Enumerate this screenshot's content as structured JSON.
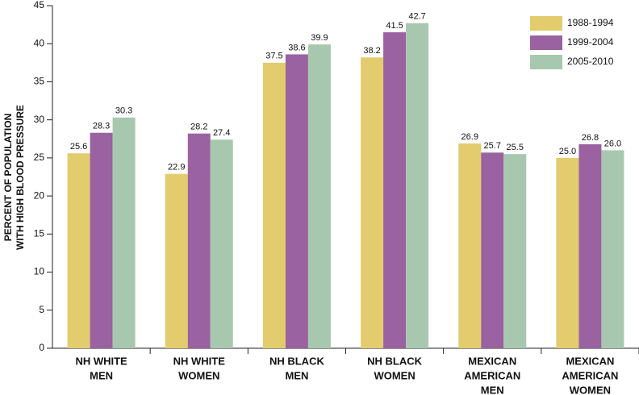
{
  "chart_data": {
    "type": "bar",
    "y_label": [
      "PERCENT OF POPULATION",
      "WITH HIGH BLOOD PRESSURE"
    ],
    "categories": [
      [
        "NH WHITE",
        "MEN"
      ],
      [
        "NH WHITE",
        "WOMEN"
      ],
      [
        "NH BLACK",
        "MEN"
      ],
      [
        "NH BLACK",
        "WOMEN"
      ],
      [
        "MEXICAN",
        "AMERICAN",
        "MEN"
      ],
      [
        "MEXICAN",
        "AMERICAN",
        "WOMEN"
      ]
    ],
    "series": [
      {
        "name": "1988-1994",
        "color": "#e2cc6e",
        "values": [
          25.6,
          22.9,
          37.5,
          38.2,
          26.9,
          25.0
        ],
        "value_labels": [
          "25.6",
          "22.9",
          "37.5",
          "38.2",
          "26.9",
          "25.0"
        ]
      },
      {
        "name": "1999-2004",
        "color": "#9a62a0",
        "values": [
          28.3,
          28.2,
          38.6,
          41.5,
          25.7,
          26.8
        ],
        "value_labels": [
          "28.3",
          "28.2",
          "38.6",
          "41.5",
          "25.7",
          "26.8"
        ]
      },
      {
        "name": "2005-2010",
        "color": "#a7c8ae",
        "values": [
          30.3,
          27.4,
          39.9,
          42.7,
          25.5,
          26.0
        ],
        "value_labels": [
          "30.3",
          "27.4",
          "39.9",
          "42.7",
          "25.5",
          "26.0"
        ]
      }
    ],
    "ylim": [
      0,
      45
    ],
    "yticks": [
      0,
      5,
      10,
      15,
      20,
      25,
      30,
      35,
      40,
      45
    ],
    "grid": false,
    "legend": "top-right"
  }
}
